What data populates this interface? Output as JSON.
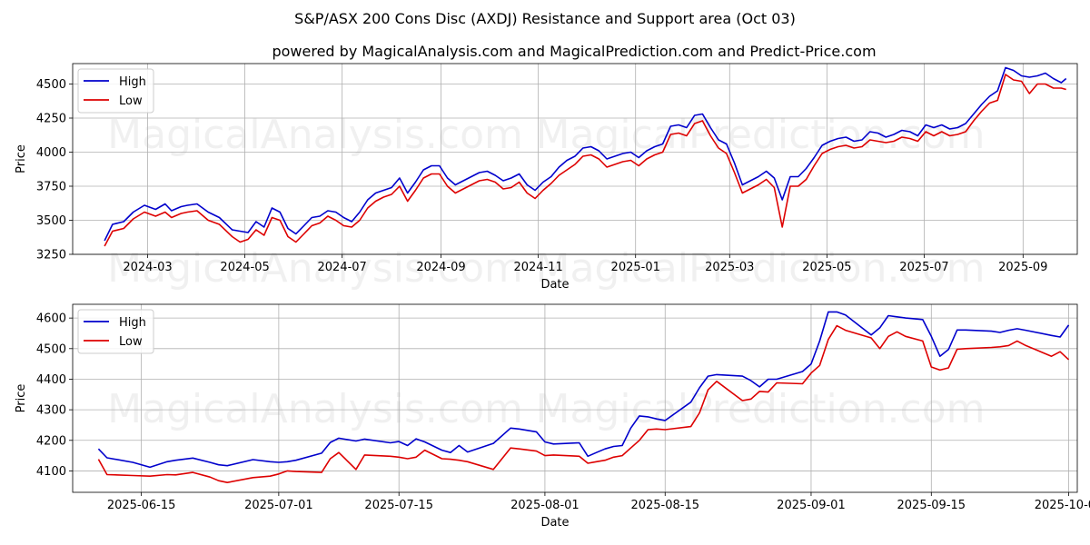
{
  "figure": {
    "title": "S&P/ASX 200 Cons Disc (AXDJ) Resistance and Support area (Oct 03)",
    "subtitle": "powered by MagicalAnalysis.com and MagicalPrediction.com and Predict-Price.com",
    "watermarks": [
      "MagicalAnalysis.com",
      "MagicalPrediction.com"
    ]
  },
  "colors": {
    "high": "#0000cc",
    "low": "#dd0000",
    "grid": "#b0b0b0"
  },
  "chart_data": [
    {
      "type": "line",
      "xlabel": "Date",
      "ylabel": "Price",
      "xlim": [
        -20,
        610
      ],
      "ylim": [
        3250,
        4650
      ],
      "xticks": [
        {
          "day": 27,
          "label": "2024-03"
        },
        {
          "day": 88,
          "label": "2024-05"
        },
        {
          "day": 149,
          "label": "2024-07"
        },
        {
          "day": 211,
          "label": "2024-09"
        },
        {
          "day": 272,
          "label": "2024-11"
        },
        {
          "day": 333,
          "label": "2025-01"
        },
        {
          "day": 392,
          "label": "2025-03"
        },
        {
          "day": 453,
          "label": "2025-05"
        },
        {
          "day": 514,
          "label": "2025-07"
        },
        {
          "day": 576,
          "label": "2025-09"
        }
      ],
      "yticks": [
        3250,
        3500,
        3750,
        4000,
        4250,
        4500
      ],
      "legend": {
        "position": "top-left",
        "entries": [
          "High",
          "Low"
        ]
      },
      "grid": true,
      "series": [
        {
          "name": "High",
          "x": [
            0,
            5,
            12,
            18,
            25,
            32,
            38,
            42,
            48,
            52,
            58,
            65,
            72,
            80,
            85,
            90,
            95,
            100,
            105,
            110,
            115,
            120,
            125,
            130,
            135,
            140,
            145,
            150,
            155,
            160,
            165,
            170,
            175,
            180,
            185,
            190,
            195,
            200,
            205,
            210,
            215,
            220,
            225,
            230,
            235,
            240,
            245,
            250,
            255,
            260,
            265,
            270,
            275,
            280,
            285,
            290,
            295,
            300,
            305,
            310,
            315,
            320,
            325,
            330,
            335,
            340,
            345,
            350,
            355,
            360,
            365,
            370,
            375,
            380,
            385,
            390,
            395,
            400,
            405,
            410,
            415,
            420,
            425,
            430,
            435,
            440,
            445,
            450,
            455,
            460,
            465,
            470,
            475,
            480,
            485,
            490,
            495,
            500,
            505,
            510,
            515,
            520,
            525,
            530,
            535,
            540,
            545,
            550,
            555,
            560,
            565,
            570,
            575,
            580,
            585,
            590,
            595,
            600,
            603
          ],
          "values": [
            3350,
            3470,
            3490,
            3560,
            3610,
            3580,
            3620,
            3570,
            3600,
            3610,
            3620,
            3560,
            3520,
            3430,
            3420,
            3410,
            3490,
            3450,
            3590,
            3560,
            3440,
            3400,
            3460,
            3520,
            3530,
            3570,
            3560,
            3520,
            3490,
            3560,
            3650,
            3700,
            3720,
            3740,
            3810,
            3700,
            3780,
            3870,
            3900,
            3900,
            3810,
            3760,
            3790,
            3820,
            3850,
            3860,
            3830,
            3790,
            3810,
            3840,
            3760,
            3720,
            3780,
            3820,
            3890,
            3940,
            3970,
            4030,
            4040,
            4010,
            3950,
            3970,
            3990,
            4000,
            3960,
            4010,
            4040,
            4060,
            4190,
            4200,
            4180,
            4270,
            4280,
            4180,
            4090,
            4060,
            3920,
            3760,
            3790,
            3820,
            3860,
            3810,
            3650,
            3820,
            3820,
            3880,
            3960,
            4050,
            4080,
            4100,
            4110,
            4080,
            4090,
            4150,
            4140,
            4110,
            4130,
            4160,
            4150,
            4120,
            4200,
            4180,
            4200,
            4170,
            4180,
            4210,
            4280,
            4350,
            4410,
            4450,
            4620,
            4600,
            4560,
            4550,
            4560,
            4580,
            4540,
            4510,
            4540
          ]
        },
        {
          "name": "Low",
          "x": [
            0,
            5,
            12,
            18,
            25,
            32,
            38,
            42,
            48,
            52,
            58,
            65,
            72,
            80,
            85,
            90,
            95,
            100,
            105,
            110,
            115,
            120,
            125,
            130,
            135,
            140,
            145,
            150,
            155,
            160,
            165,
            170,
            175,
            180,
            185,
            190,
            195,
            200,
            205,
            210,
            215,
            220,
            225,
            230,
            235,
            240,
            245,
            250,
            255,
            260,
            265,
            270,
            275,
            280,
            285,
            290,
            295,
            300,
            305,
            310,
            315,
            320,
            325,
            330,
            335,
            340,
            345,
            350,
            355,
            360,
            365,
            370,
            375,
            380,
            385,
            390,
            395,
            400,
            405,
            410,
            415,
            420,
            425,
            430,
            435,
            440,
            445,
            450,
            455,
            460,
            465,
            470,
            475,
            480,
            485,
            490,
            495,
            500,
            505,
            510,
            515,
            520,
            525,
            530,
            535,
            540,
            545,
            550,
            555,
            560,
            565,
            570,
            575,
            580,
            585,
            590,
            595,
            600,
            603
          ],
          "values": [
            3310,
            3420,
            3440,
            3510,
            3560,
            3530,
            3560,
            3520,
            3550,
            3560,
            3570,
            3500,
            3470,
            3380,
            3340,
            3360,
            3430,
            3390,
            3520,
            3500,
            3380,
            3340,
            3400,
            3460,
            3480,
            3530,
            3500,
            3460,
            3450,
            3500,
            3590,
            3640,
            3670,
            3690,
            3750,
            3640,
            3720,
            3810,
            3840,
            3840,
            3750,
            3700,
            3730,
            3760,
            3790,
            3800,
            3780,
            3730,
            3740,
            3780,
            3700,
            3660,
            3720,
            3770,
            3830,
            3870,
            3910,
            3970,
            3980,
            3950,
            3890,
            3910,
            3930,
            3940,
            3900,
            3950,
            3980,
            4000,
            4130,
            4140,
            4120,
            4210,
            4230,
            4120,
            4030,
            3990,
            3850,
            3700,
            3730,
            3760,
            3800,
            3740,
            3450,
            3750,
            3750,
            3800,
            3900,
            3990,
            4020,
            4040,
            4050,
            4030,
            4040,
            4090,
            4080,
            4070,
            4080,
            4110,
            4100,
            4080,
            4150,
            4120,
            4150,
            4120,
            4130,
            4150,
            4230,
            4300,
            4360,
            4380,
            4570,
            4530,
            4520,
            4430,
            4500,
            4500,
            4470,
            4470,
            4460
          ]
        }
      ]
    },
    {
      "type": "line",
      "xlabel": "Date",
      "ylabel": "Price",
      "xlim": [
        -8,
        109
      ],
      "ylim": [
        4030,
        4645
      ],
      "xticks": [
        {
          "day": 0,
          "label": "2025-06-15"
        },
        {
          "day": 16,
          "label": "2025-07-01"
        },
        {
          "day": 30,
          "label": "2025-07-15"
        },
        {
          "day": 47,
          "label": "2025-08-01"
        },
        {
          "day": 61,
          "label": "2025-08-15"
        },
        {
          "day": 78,
          "label": "2025-09-01"
        },
        {
          "day": 92,
          "label": "2025-09-15"
        },
        {
          "day": 108,
          "label": "2025-10-01"
        }
      ],
      "yticks": [
        4100,
        4200,
        4300,
        4400,
        4500,
        4600
      ],
      "legend": {
        "position": "top-left",
        "entries": [
          "High",
          "Low"
        ]
      },
      "grid": true,
      "series": [
        {
          "name": "High",
          "x": [
            -5,
            -4,
            -1,
            1,
            3,
            4,
            6,
            8,
            9,
            10,
            13,
            15,
            16,
            17,
            18,
            21,
            22,
            23,
            25,
            26,
            29,
            30,
            31,
            32,
            33,
            35,
            36,
            37,
            38,
            41,
            43,
            44,
            46,
            47,
            48,
            51,
            52,
            53,
            54,
            55,
            56,
            57,
            58,
            59,
            60,
            61,
            64,
            65,
            66,
            67,
            70,
            71,
            72,
            73,
            74,
            77,
            78,
            79,
            80,
            81,
            82,
            85,
            86,
            87,
            88,
            89,
            91,
            92,
            93,
            94,
            95,
            96,
            99,
            100,
            101,
            102,
            103,
            106,
            107,
            108
          ],
          "values": [
            4172,
            4143,
            4128,
            4112,
            4130,
            4135,
            4142,
            4128,
            4120,
            4117,
            4137,
            4130,
            4128,
            4130,
            4135,
            4158,
            4193,
            4207,
            4198,
            4204,
            4192,
            4196,
            4183,
            4205,
            4195,
            4168,
            4160,
            4183,
            4162,
            4190,
            4240,
            4237,
            4228,
            4195,
            4188,
            4192,
            4148,
            4160,
            4172,
            4180,
            4183,
            4240,
            4280,
            4277,
            4270,
            4265,
            4325,
            4372,
            4410,
            4415,
            4410,
            4395,
            4375,
            4400,
            4400,
            4425,
            4450,
            4525,
            4620,
            4620,
            4610,
            4545,
            4568,
            4608,
            4604,
            4600,
            4595,
            4540,
            4475,
            4497,
            4561,
            4561,
            4557,
            4553,
            4560,
            4565,
            4560,
            4543,
            4538,
            4577
          ]
        },
        {
          "name": "Low",
          "x": [
            -5,
            -4,
            -1,
            1,
            3,
            4,
            6,
            8,
            9,
            10,
            13,
            15,
            16,
            17,
            18,
            21,
            22,
            23,
            25,
            26,
            29,
            30,
            31,
            32,
            33,
            35,
            36,
            37,
            38,
            41,
            43,
            44,
            46,
            47,
            48,
            51,
            52,
            53,
            54,
            55,
            56,
            57,
            58,
            59,
            60,
            61,
            64,
            65,
            66,
            67,
            70,
            71,
            72,
            73,
            74,
            77,
            78,
            79,
            80,
            81,
            82,
            85,
            86,
            87,
            88,
            89,
            91,
            92,
            93,
            94,
            95,
            96,
            99,
            100,
            101,
            102,
            103,
            106,
            107,
            108
          ],
          "values": [
            4138,
            4088,
            4085,
            4083,
            4088,
            4087,
            4095,
            4080,
            4068,
            4062,
            4078,
            4083,
            4090,
            4100,
            4098,
            4095,
            4140,
            4160,
            4105,
            4152,
            4148,
            4145,
            4140,
            4145,
            4168,
            4140,
            4138,
            4135,
            4130,
            4105,
            4175,
            4172,
            4165,
            4150,
            4152,
            4148,
            4125,
            4130,
            4135,
            4145,
            4150,
            4175,
            4200,
            4235,
            4237,
            4235,
            4245,
            4290,
            4365,
            4393,
            4330,
            4335,
            4360,
            4358,
            4388,
            4385,
            4420,
            4445,
            4530,
            4575,
            4560,
            4535,
            4500,
            4540,
            4555,
            4540,
            4525,
            4440,
            4430,
            4437,
            4498,
            4500,
            4504,
            4506,
            4510,
            4525,
            4510,
            4475,
            4490,
            4464
          ]
        }
      ]
    }
  ]
}
